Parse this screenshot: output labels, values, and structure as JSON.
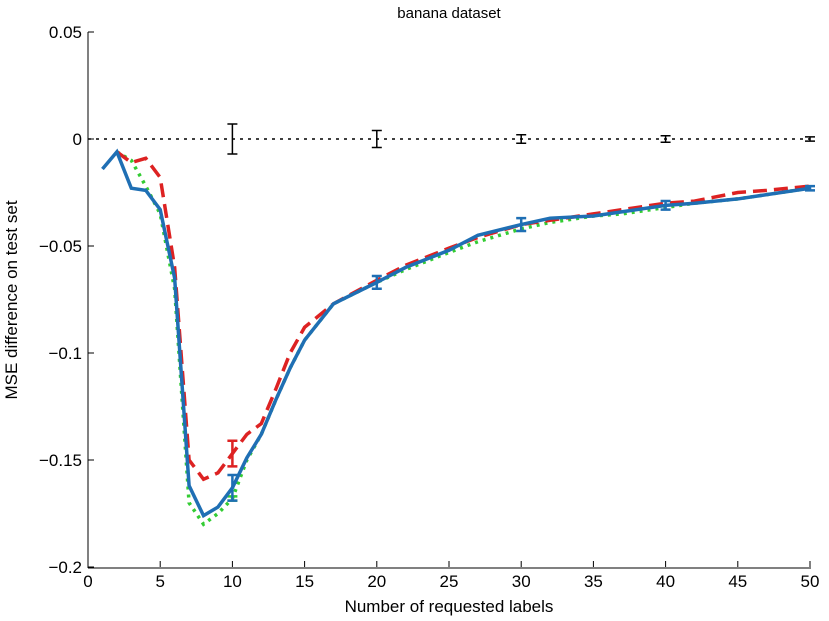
{
  "chart_data": {
    "type": "line",
    "title": "banana dataset",
    "xlabel": "Number of requested labels",
    "ylabel": "MSE difference on test set",
    "xlim": [
      0,
      50
    ],
    "xticks": [
      0,
      5,
      10,
      15,
      20,
      25,
      30,
      35,
      40,
      45,
      50
    ],
    "ylim": [
      -0.2,
      0.05
    ],
    "yticks": [
      {
        "value": -0.2,
        "label": "−0.2"
      },
      {
        "value": -0.15,
        "label": "−0.15"
      },
      {
        "value": -0.1,
        "label": "−0.1"
      },
      {
        "value": -0.05,
        "label": "−0.05"
      },
      0,
      0.05
    ],
    "series": [
      {
        "color": "#000000",
        "style": "dotted",
        "width": 1.5,
        "x": [
          0,
          10,
          20,
          30,
          40,
          50
        ],
        "values": [
          0,
          0,
          0,
          0,
          0,
          0
        ],
        "errors": [
          null,
          0.007,
          0.004,
          0.002,
          0.0015,
          0.001
        ]
      },
      {
        "color": "#33cc33",
        "style": "dotted",
        "width": 3.5,
        "x": [
          2,
          3,
          4,
          5,
          6,
          7,
          8,
          9,
          10,
          11,
          12,
          13,
          14,
          15,
          17,
          20,
          22,
          25,
          27,
          30,
          32,
          35,
          37,
          40,
          42,
          45,
          47,
          50
        ],
        "values": [
          -0.006,
          -0.01,
          -0.022,
          -0.035,
          -0.07,
          -0.17,
          -0.18,
          -0.175,
          -0.168,
          -0.15,
          -0.138,
          -0.122,
          -0.107,
          -0.094,
          -0.077,
          -0.067,
          -0.061,
          -0.053,
          -0.048,
          -0.042,
          -0.039,
          -0.036,
          -0.035,
          -0.032,
          -0.03,
          -0.028,
          -0.026,
          -0.023
        ],
        "errors": [
          null,
          null,
          null,
          null,
          null,
          null,
          null,
          null,
          0.001,
          null,
          null,
          null,
          null,
          null,
          null,
          null,
          null,
          null,
          null,
          null,
          null,
          null,
          null,
          null,
          null,
          null,
          null,
          null
        ]
      },
      {
        "color": "#dd2222",
        "style": "dashed",
        "width": 3.5,
        "x": [
          2,
          3,
          4,
          5,
          6,
          7,
          8,
          9,
          10,
          11,
          12,
          13,
          14,
          15,
          17,
          20,
          22,
          25,
          27,
          30,
          32,
          35,
          37,
          40,
          42,
          45,
          47,
          50
        ],
        "values": [
          -0.006,
          -0.011,
          -0.009,
          -0.018,
          -0.06,
          -0.15,
          -0.159,
          -0.156,
          -0.147,
          -0.138,
          -0.133,
          -0.117,
          -0.1,
          -0.088,
          -0.077,
          -0.066,
          -0.059,
          -0.051,
          -0.046,
          -0.04,
          -0.038,
          -0.035,
          -0.033,
          -0.03,
          -0.029,
          -0.025,
          -0.024,
          -0.022
        ],
        "errors": [
          null,
          null,
          null,
          null,
          null,
          null,
          null,
          null,
          0.006,
          null,
          null,
          null,
          null,
          null,
          null,
          null,
          null,
          null,
          null,
          null,
          null,
          null,
          null,
          null,
          null,
          null,
          null,
          null
        ]
      },
      {
        "color": "#1f6fb4",
        "style": "solid",
        "width": 3.5,
        "x": [
          1,
          2,
          3,
          4,
          5,
          6,
          7,
          8,
          9,
          10,
          11,
          12,
          13,
          14,
          15,
          17,
          20,
          22,
          25,
          27,
          30,
          32,
          35,
          37,
          40,
          42,
          45,
          47,
          50
        ],
        "values": [
          -0.014,
          -0.006,
          -0.023,
          -0.024,
          -0.033,
          -0.065,
          -0.162,
          -0.176,
          -0.172,
          -0.163,
          -0.149,
          -0.138,
          -0.122,
          -0.107,
          -0.094,
          -0.077,
          -0.067,
          -0.06,
          -0.052,
          -0.045,
          -0.04,
          -0.037,
          -0.036,
          -0.034,
          -0.031,
          -0.03,
          -0.028,
          -0.026,
          -0.023
        ],
        "errors": [
          null,
          null,
          null,
          null,
          null,
          null,
          null,
          null,
          null,
          0.006,
          null,
          null,
          null,
          null,
          null,
          null,
          0.003,
          null,
          null,
          null,
          0.003,
          null,
          null,
          null,
          0.002,
          null,
          null,
          null,
          0.001
        ]
      }
    ]
  }
}
